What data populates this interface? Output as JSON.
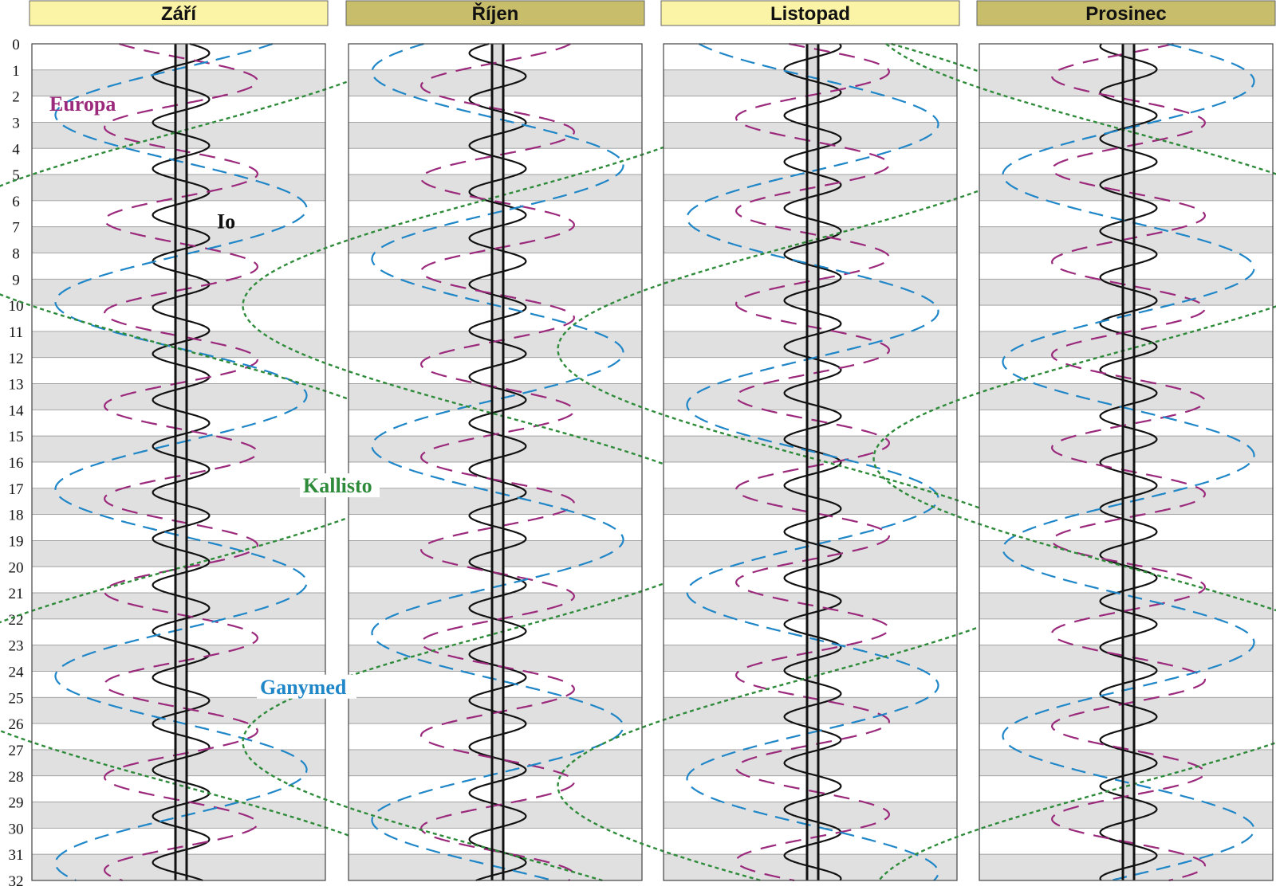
{
  "chart_data": {
    "type": "line",
    "title": "",
    "xlabel": "",
    "ylabel": "",
    "y_ticks": [
      "0",
      "1",
      "2",
      "3",
      "4",
      "5",
      "6",
      "7",
      "8",
      "9",
      "10",
      "11",
      "12",
      "13",
      "14",
      "15",
      "16",
      "17",
      "18",
      "19",
      "20",
      "21",
      "22",
      "23",
      "24",
      "25",
      "26",
      "27",
      "28",
      "29",
      "30",
      "31",
      "32"
    ],
    "ylim": [
      0,
      32
    ],
    "y_direction": "downward",
    "grid": "alternating day bands",
    "panels": [
      {
        "month": "Září",
        "header_color": "#fbf4a6",
        "phases": {
          "Io": 0.05,
          "Europa": 0.85,
          "Ganymed": 0.37,
          "Kallisto": 0.3
        }
      },
      {
        "month": "Říjen",
        "header_color": "#c7bd6b",
        "phases": {
          "Io": 0.55,
          "Europa": 0.3,
          "Ganymed": 0.6,
          "Kallisto": 0.15
        }
      },
      {
        "month": "Listopad",
        "header_color": "#fbf4a6",
        "phases": {
          "Io": 0.2,
          "Europa": 0.95,
          "Ganymed": 0.82,
          "Kallisto": 0.05
        }
      },
      {
        "month": "Prosinec",
        "header_color": "#c7bd6b",
        "phases": {
          "Io": 0.7,
          "Europa": 0.4,
          "Ganymed": 0.05,
          "Kallisto": 0.8
        }
      }
    ],
    "series": [
      {
        "name": "Io",
        "color": "#111111",
        "period_days": 1.769,
        "amplitude": 5.9,
        "line_style": "solid"
      },
      {
        "name": "Europa",
        "color": "#9b2a7c",
        "period_days": 3.551,
        "amplitude": 9.4,
        "line_style": "long-dash"
      },
      {
        "name": "Ganymed",
        "color": "#1f86c8",
        "period_days": 7.155,
        "amplitude": 15.0,
        "line_style": "dash"
      },
      {
        "name": "Kallisto",
        "color": "#2e8b3a",
        "period_days": 16.689,
        "amplitude": 26.4,
        "line_style": "dotted"
      }
    ],
    "annotations": [
      {
        "text": "Europa",
        "color": "#9b2a7c",
        "panel": 0,
        "day": 2.5
      },
      {
        "text": "Io",
        "color": "#111111",
        "panel": 0,
        "day": 7.0
      },
      {
        "text": "Kallisto",
        "color": "#2e8b3a",
        "panel": 0,
        "day": 17.1
      },
      {
        "text": "Ganymed",
        "color": "#1f86c8",
        "panel": 0,
        "day": 24.8
      }
    ]
  }
}
